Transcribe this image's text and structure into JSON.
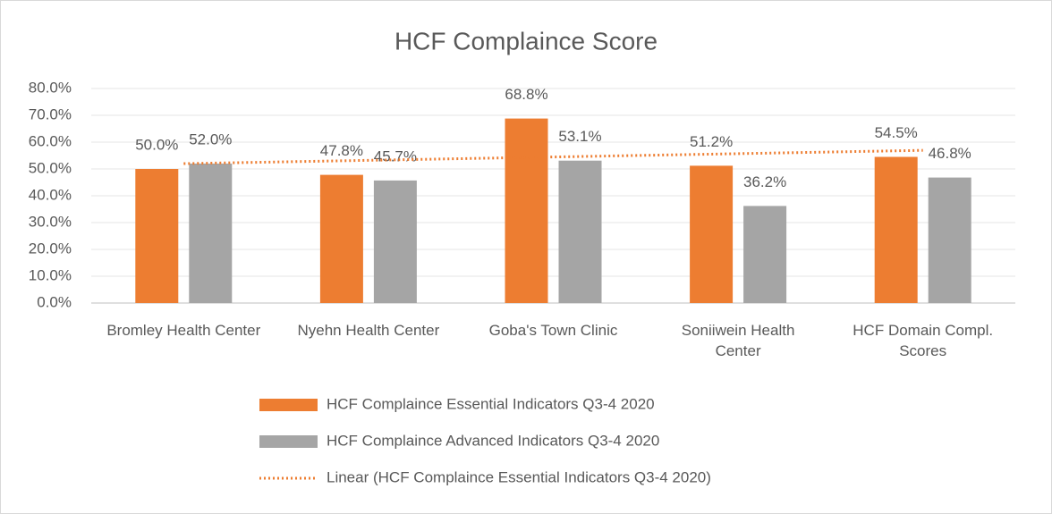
{
  "chart_data": {
    "type": "bar",
    "title": "HCF Complaince Score",
    "categories": [
      "Bromley Health Center",
      "Nyehn Health Center",
      "Goba's Town Clinic",
      "Soniiwein Health Center",
      "HCF Domain Compl. Scores"
    ],
    "series": [
      {
        "name": "HCF Complaince Essential Indicators Q3-4 2020",
        "color": "#ed7d31",
        "values": [
          50.0,
          47.8,
          68.8,
          51.2,
          54.5
        ],
        "value_labels": [
          "50.0%",
          "47.8%",
          "68.8%",
          "51.2%",
          "54.5%"
        ]
      },
      {
        "name": "HCF Complaince Advanced Indicators Q3-4 2020",
        "color": "#a5a5a5",
        "values": [
          52.0,
          45.7,
          53.1,
          36.2,
          46.8
        ],
        "value_labels": [
          "52.0%",
          "45.7%",
          "53.1%",
          "36.2%",
          "46.8%"
        ]
      }
    ],
    "trendline": {
      "name": "Linear (HCF Complaince Essential Indicators Q3-4 2020)",
      "color": "#ed7d31",
      "type": "linear",
      "series": 0
    },
    "ylim": [
      0,
      80
    ],
    "yticks": [
      {
        "value": 0,
        "label": "0.0%"
      },
      {
        "value": 10,
        "label": "10.0%"
      },
      {
        "value": 20,
        "label": "20.0%"
      },
      {
        "value": 30,
        "label": "30.0%"
      },
      {
        "value": 40,
        "label": "40.0%"
      },
      {
        "value": 50,
        "label": "50.0%"
      },
      {
        "value": 60,
        "label": "60.0%"
      },
      {
        "value": 70,
        "label": "70.0%"
      },
      {
        "value": 80,
        "label": "80.0%"
      }
    ],
    "grid": true,
    "legend": "bottom"
  }
}
